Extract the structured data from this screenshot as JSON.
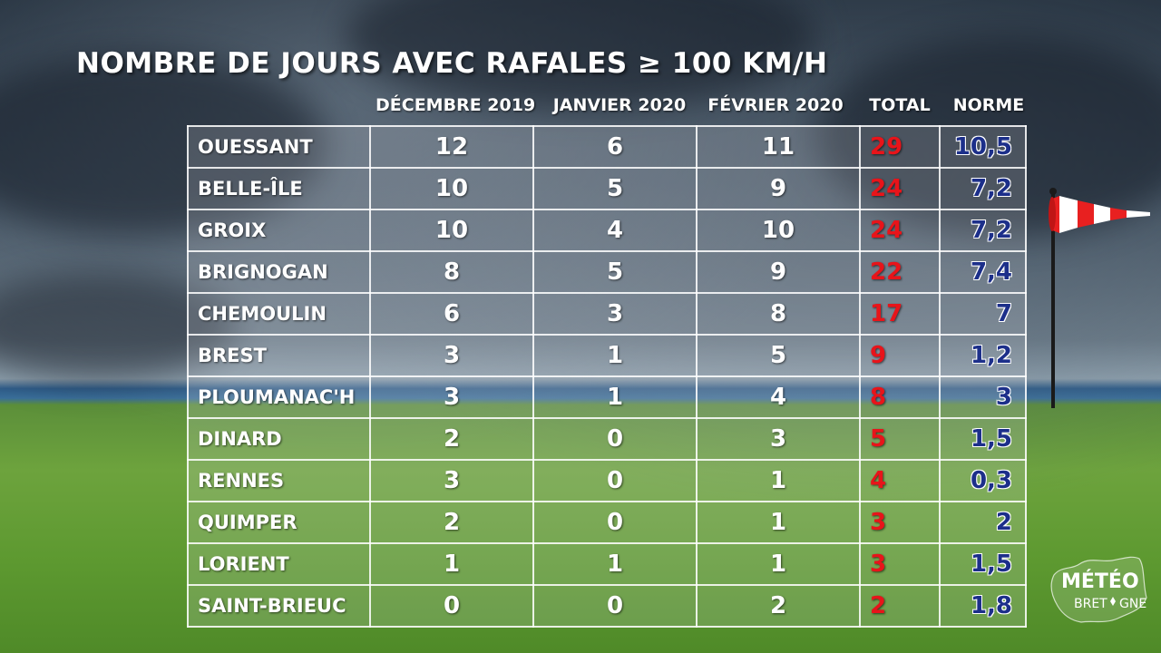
{
  "title": "NOMBRE DE JOURS AVEC RAFALES ≥ 100 KM/H",
  "columns": {
    "dec": "DÉCEMBRE 2019",
    "jan": "JANVIER 2020",
    "feb": "FÉVRIER 2020",
    "total": "TOTAL",
    "norme": "NORME"
  },
  "rows": [
    {
      "city": "OUESSANT",
      "dec": "12",
      "jan": "6",
      "feb": "11",
      "total": "29",
      "norme": "10,5"
    },
    {
      "city": "BELLE-ÎLE",
      "dec": "10",
      "jan": "5",
      "feb": "9",
      "total": "24",
      "norme": "7,2"
    },
    {
      "city": "GROIX",
      "dec": "10",
      "jan": "4",
      "feb": "10",
      "total": "24",
      "norme": "7,2"
    },
    {
      "city": "BRIGNOGAN",
      "dec": "8",
      "jan": "5",
      "feb": "9",
      "total": "22",
      "norme": "7,4"
    },
    {
      "city": "CHEMOULIN",
      "dec": "6",
      "jan": "3",
      "feb": "8",
      "total": "17",
      "norme": "7"
    },
    {
      "city": "BREST",
      "dec": "3",
      "jan": "1",
      "feb": "5",
      "total": "9",
      "norme": "1,2"
    },
    {
      "city": "PLOUMANAC'H",
      "dec": "3",
      "jan": "1",
      "feb": "4",
      "total": "8",
      "norme": "3"
    },
    {
      "city": "DINARD",
      "dec": "2",
      "jan": "0",
      "feb": "3",
      "total": "5",
      "norme": "1,5"
    },
    {
      "city": "RENNES",
      "dec": "3",
      "jan": "0",
      "feb": "1",
      "total": "4",
      "norme": "0,3"
    },
    {
      "city": "QUIMPER",
      "dec": "2",
      "jan": "0",
      "feb": "1",
      "total": "3",
      "norme": "2"
    },
    {
      "city": "LORIENT",
      "dec": "1",
      "jan": "1",
      "feb": "1",
      "total": "3",
      "norme": "1,5"
    },
    {
      "city": "SAINT-BRIEUC",
      "dec": "0",
      "jan": "0",
      "feb": "2",
      "total": "2",
      "norme": "1,8"
    }
  ],
  "logo": {
    "line1": "MÉTÉO",
    "line2a": "BRET",
    "line2b": "GNE"
  },
  "colors": {
    "total": "#e8141a",
    "norme": "#1c2f8a"
  },
  "icons": {
    "windsock": "windsock-icon",
    "logo": "meteo-bretagne-logo"
  }
}
